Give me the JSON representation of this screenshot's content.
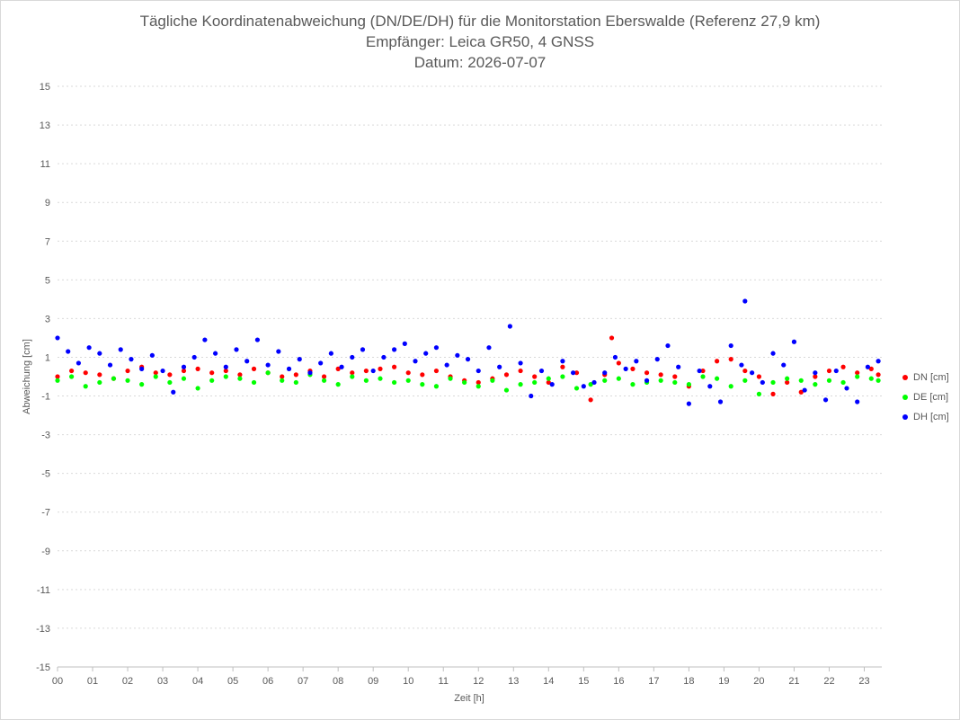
{
  "chart_data": {
    "type": "scatter",
    "title_lines": [
      "Tägliche Koordinatenabweichung (DN/DE/DH) für die Monitorstation Eberswalde (Referenz 27,9 km)",
      "Empfänger: Leica GR50, 4 GNSS",
      "Datum: 2026-07-07"
    ],
    "xlabel": "Zeit [h]",
    "ylabel": "Abweichung [cm]",
    "xlim": [
      0,
      23.5
    ],
    "ylim": [
      -15,
      15
    ],
    "x_ticks": [
      "00",
      "01",
      "02",
      "03",
      "04",
      "05",
      "06",
      "07",
      "08",
      "09",
      "10",
      "11",
      "12",
      "13",
      "14",
      "15",
      "16",
      "17",
      "18",
      "19",
      "20",
      "21",
      "22",
      "23"
    ],
    "y_ticks": [
      "15",
      "13",
      "11",
      "9",
      "7",
      "5",
      "3",
      "1",
      "-1",
      "-3",
      "-5",
      "-7",
      "-9",
      "-11",
      "-13",
      "-15"
    ],
    "grid": "horizontal dotted",
    "legend_position": "right",
    "series": [
      {
        "name": "DN [cm]",
        "color": "#ff0000",
        "x": [
          0.0,
          0.4,
          0.8,
          1.2,
          1.6,
          2.0,
          2.4,
          2.8,
          3.2,
          3.6,
          4.0,
          4.4,
          4.8,
          5.2,
          5.6,
          6.0,
          6.4,
          6.8,
          7.2,
          7.6,
          8.0,
          8.4,
          8.8,
          9.2,
          9.6,
          10.0,
          10.4,
          10.8,
          11.2,
          11.6,
          12.0,
          12.4,
          12.8,
          13.2,
          13.6,
          14.0,
          14.4,
          14.8,
          15.2,
          15.6,
          15.8,
          16.0,
          16.4,
          16.8,
          17.2,
          17.6,
          18.0,
          18.4,
          18.8,
          19.2,
          19.6,
          20.0,
          20.4,
          20.8,
          21.2,
          21.6,
          22.0,
          22.4,
          22.8,
          23.2,
          23.4
        ],
        "y": [
          0.0,
          0.3,
          0.2,
          0.1,
          -0.1,
          0.3,
          0.5,
          0.2,
          0.1,
          0.3,
          0.4,
          0.2,
          0.3,
          0.1,
          0.4,
          0.2,
          0.0,
          0.1,
          0.3,
          0.0,
          0.4,
          0.2,
          0.3,
          0.4,
          0.5,
          0.2,
          0.1,
          0.3,
          0.0,
          -0.2,
          -0.3,
          -0.1,
          0.1,
          0.3,
          0.0,
          -0.3,
          0.5,
          0.2,
          -1.2,
          0.1,
          2.0,
          0.7,
          0.4,
          0.2,
          0.1,
          0.0,
          -0.5,
          0.3,
          0.8,
          0.9,
          0.3,
          0.0,
          -0.9,
          -0.3,
          -0.8,
          0.0,
          0.3,
          0.5,
          0.2,
          0.4,
          0.1
        ]
      },
      {
        "name": "DE [cm]",
        "color": "#00ff00",
        "x": [
          0.0,
          0.4,
          0.8,
          1.2,
          1.6,
          2.0,
          2.4,
          2.8,
          3.2,
          3.6,
          4.0,
          4.4,
          4.8,
          5.2,
          5.6,
          6.0,
          6.4,
          6.8,
          7.2,
          7.6,
          8.0,
          8.4,
          8.8,
          9.2,
          9.6,
          10.0,
          10.4,
          10.8,
          11.2,
          11.6,
          12.0,
          12.4,
          12.8,
          13.2,
          13.6,
          14.0,
          14.4,
          14.8,
          15.2,
          15.6,
          16.0,
          16.4,
          16.8,
          17.2,
          17.6,
          18.0,
          18.4,
          18.8,
          19.2,
          19.6,
          20.0,
          20.4,
          20.8,
          21.2,
          21.6,
          22.0,
          22.4,
          22.8,
          23.2,
          23.4
        ],
        "y": [
          -0.2,
          0.0,
          -0.5,
          -0.3,
          -0.1,
          -0.2,
          -0.4,
          0.0,
          -0.3,
          -0.1,
          -0.6,
          -0.2,
          0.0,
          -0.1,
          -0.3,
          0.2,
          -0.2,
          -0.3,
          0.1,
          -0.2,
          -0.4,
          0.0,
          -0.2,
          -0.1,
          -0.3,
          -0.2,
          -0.4,
          -0.5,
          -0.1,
          -0.3,
          -0.5,
          -0.2,
          -0.7,
          -0.4,
          -0.3,
          -0.1,
          0.0,
          -0.6,
          -0.4,
          -0.2,
          -0.1,
          -0.4,
          -0.3,
          -0.2,
          -0.3,
          -0.4,
          0.0,
          -0.1,
          -0.5,
          -0.2,
          -0.9,
          -0.3,
          -0.1,
          -0.2,
          -0.4,
          -0.2,
          -0.3,
          0.0,
          -0.1,
          -0.2
        ]
      },
      {
        "name": "DH [cm]",
        "color": "#0000ff",
        "x": [
          0.0,
          0.3,
          0.6,
          0.9,
          1.2,
          1.5,
          1.8,
          2.1,
          2.4,
          2.7,
          3.0,
          3.3,
          3.6,
          3.9,
          4.2,
          4.5,
          4.8,
          5.1,
          5.4,
          5.7,
          6.0,
          6.3,
          6.6,
          6.9,
          7.2,
          7.5,
          7.8,
          8.1,
          8.4,
          8.7,
          9.0,
          9.3,
          9.6,
          9.9,
          10.2,
          10.5,
          10.8,
          11.1,
          11.4,
          11.7,
          12.0,
          12.3,
          12.6,
          12.9,
          13.2,
          13.5,
          13.8,
          14.1,
          14.4,
          14.7,
          15.0,
          15.3,
          15.6,
          15.9,
          16.2,
          16.5,
          16.8,
          17.1,
          17.4,
          17.7,
          18.0,
          18.3,
          18.6,
          18.9,
          19.2,
          19.5,
          19.6,
          19.8,
          20.1,
          20.4,
          20.7,
          21.0,
          21.3,
          21.6,
          21.9,
          22.2,
          22.5,
          22.8,
          23.1,
          23.4
        ],
        "y": [
          2.0,
          1.3,
          0.7,
          1.5,
          1.2,
          0.6,
          1.4,
          0.9,
          0.4,
          1.1,
          0.3,
          -0.8,
          0.5,
          1.0,
          1.9,
          1.2,
          0.5,
          1.4,
          0.8,
          1.9,
          0.6,
          1.3,
          0.4,
          0.9,
          0.2,
          0.7,
          1.2,
          0.5,
          1.0,
          1.4,
          0.3,
          1.0,
          1.4,
          1.7,
          0.8,
          1.2,
          1.5,
          0.6,
          1.1,
          0.9,
          0.3,
          1.5,
          0.5,
          2.6,
          0.7,
          -1.0,
          0.3,
          -0.4,
          0.8,
          0.2,
          -0.5,
          -0.3,
          0.2,
          1.0,
          0.4,
          0.8,
          -0.2,
          0.9,
          1.6,
          0.5,
          -1.4,
          0.3,
          -0.5,
          -1.3,
          1.6,
          0.6,
          3.9,
          0.2,
          -0.3,
          1.2,
          0.6,
          1.8,
          -0.7,
          0.2,
          -1.2,
          0.3,
          -0.6,
          -1.3,
          0.5,
          0.8
        ]
      }
    ]
  }
}
